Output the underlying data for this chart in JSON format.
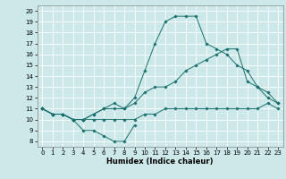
{
  "title": "",
  "xlabel": "Humidex (Indice chaleur)",
  "ylabel": "",
  "background_color": "#cde8e8",
  "grid_color": "#ffffff",
  "line_color": "#1a7070",
  "xlim": [
    -0.5,
    23.5
  ],
  "ylim": [
    7.5,
    20.5
  ],
  "xticks": [
    0,
    1,
    2,
    3,
    4,
    5,
    6,
    7,
    8,
    9,
    10,
    11,
    12,
    13,
    14,
    15,
    16,
    17,
    18,
    19,
    20,
    21,
    22,
    23
  ],
  "yticks": [
    8,
    9,
    10,
    11,
    12,
    13,
    14,
    15,
    16,
    17,
    18,
    19,
    20
  ],
  "x": [
    0,
    1,
    2,
    3,
    4,
    5,
    6,
    7,
    8,
    9,
    10,
    11,
    12,
    13,
    14,
    15,
    16,
    17,
    18,
    19,
    20,
    21,
    22,
    23
  ],
  "line1": [
    11.0,
    10.5,
    10.5,
    10.0,
    9.0,
    9.0,
    8.5,
    8.0,
    8.0,
    9.5,
    null,
    null,
    null,
    null,
    null,
    null,
    null,
    null,
    null,
    null,
    null,
    null,
    null,
    null
  ],
  "line2": [
    11.0,
    10.5,
    10.5,
    10.0,
    10.0,
    10.0,
    10.0,
    10.0,
    10.0,
    10.0,
    10.5,
    10.5,
    11.0,
    11.0,
    11.0,
    11.0,
    11.0,
    11.0,
    11.0,
    11.0,
    11.0,
    11.0,
    11.5,
    11.0
  ],
  "line3": [
    11.0,
    10.5,
    10.5,
    10.0,
    10.0,
    10.5,
    11.0,
    11.0,
    11.0,
    11.5,
    12.5,
    13.0,
    13.0,
    13.5,
    14.5,
    15.0,
    15.5,
    16.0,
    16.5,
    16.5,
    13.5,
    13.0,
    12.5,
    11.5
  ],
  "line4": [
    11.0,
    10.5,
    10.5,
    10.0,
    10.0,
    10.5,
    11.0,
    11.5,
    11.0,
    12.0,
    14.5,
    17.0,
    19.0,
    19.5,
    19.5,
    19.5,
    17.0,
    16.5,
    16.0,
    15.0,
    14.5,
    13.0,
    12.0,
    11.5
  ]
}
